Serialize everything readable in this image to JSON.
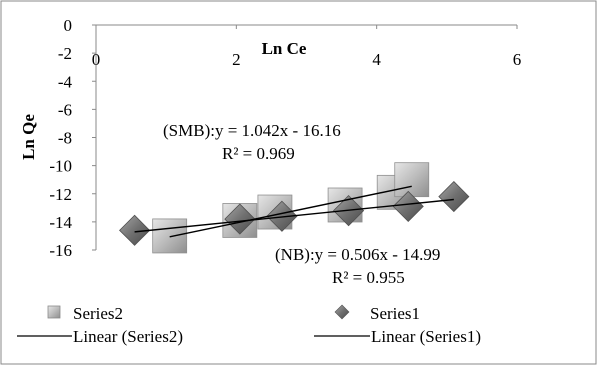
{
  "chart_data": {
    "type": "scatter",
    "title": "",
    "xlabel": "Ln Ce",
    "ylabel": "Ln Qe",
    "xlim": [
      0,
      6
    ],
    "ylim": [
      -16,
      0
    ],
    "x_ticks": [
      "0",
      "2",
      "4",
      "6"
    ],
    "y_ticks": [
      "0",
      "-2",
      "-4",
      "-6",
      "-8",
      "-10",
      "-12",
      "-14",
      "-16"
    ],
    "grid": false,
    "legend_position": "bottom",
    "series": [
      {
        "name": "Series2",
        "marker": "square",
        "color": "#b4b4b4",
        "points": [
          {
            "x": 1.05,
            "y": -15.0
          },
          {
            "x": 2.05,
            "y": -13.9
          },
          {
            "x": 2.55,
            "y": -13.3
          },
          {
            "x": 3.55,
            "y": -12.8
          },
          {
            "x": 4.25,
            "y": -11.9
          },
          {
            "x": 4.5,
            "y": -11.0
          }
        ]
      },
      {
        "name": "Series1",
        "marker": "diamond",
        "color": "#6f6f6f",
        "points": [
          {
            "x": 0.55,
            "y": -14.6
          },
          {
            "x": 2.05,
            "y": -13.8
          },
          {
            "x": 2.65,
            "y": -13.6
          },
          {
            "x": 3.6,
            "y": -13.2
          },
          {
            "x": 4.45,
            "y": -12.9
          },
          {
            "x": 5.1,
            "y": -12.2
          }
        ]
      }
    ],
    "trendlines": [
      {
        "name": "Linear (Series2)",
        "of": "Series2",
        "slope": 1.042,
        "intercept": -16.16,
        "x_range": [
          1.05,
          4.5
        ],
        "color": "#000000"
      },
      {
        "name": "Linear (Series1)",
        "of": "Series1",
        "slope": 0.506,
        "intercept": -14.99,
        "x_range": [
          0.55,
          5.1
        ],
        "color": "#000000"
      }
    ],
    "annotations": [
      {
        "id": "smb_eq",
        "text": "(SMB):y = 1.042x - 16.16"
      },
      {
        "id": "smb_r2",
        "text": "R² = 0.969"
      },
      {
        "id": "nb_eq",
        "text": "(NB):y = 0.506x - 14.99"
      },
      {
        "id": "nb_r2",
        "text": "R² = 0.955"
      }
    ]
  },
  "legend": {
    "series2_label": "Series2",
    "series1_label": "Series1",
    "linear2_label": "Linear (Series2)",
    "linear1_label": "Linear (Series1)"
  }
}
